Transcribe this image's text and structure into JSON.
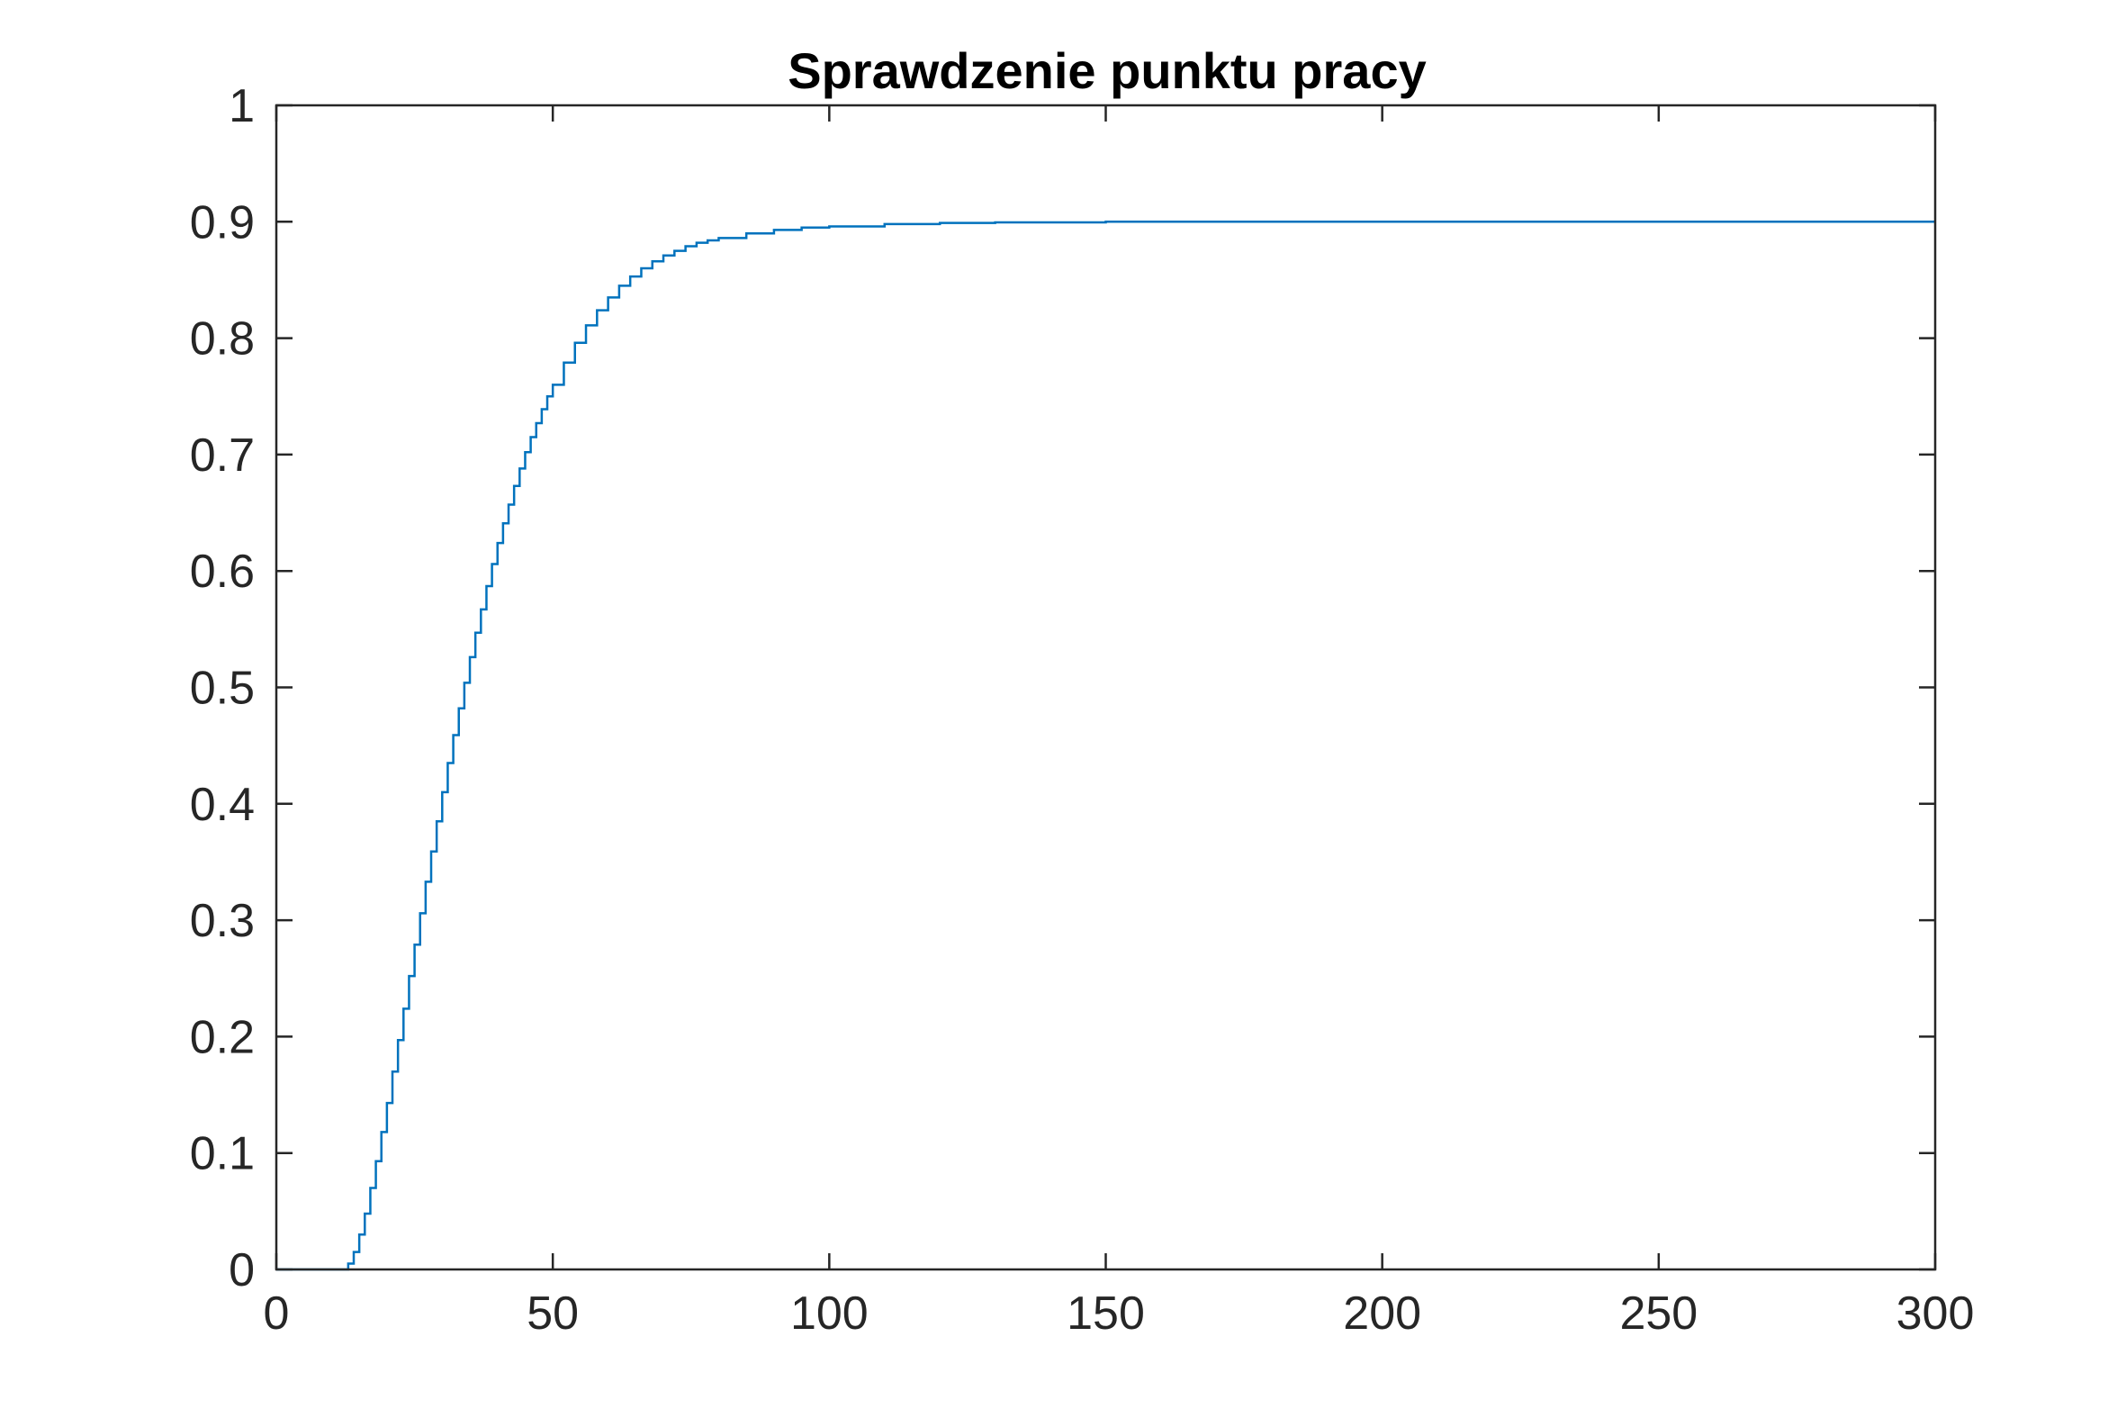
{
  "chart_data": {
    "type": "line",
    "line_style": "stairs",
    "title": "Sprawdzenie punktu pracy",
    "xlabel": "",
    "ylabel": "",
    "xlim": [
      0,
      300
    ],
    "ylim": [
      0,
      1
    ],
    "x_ticks": [
      0,
      50,
      100,
      150,
      200,
      250,
      300
    ],
    "y_ticks": [
      0,
      0.1,
      0.2,
      0.3,
      0.4,
      0.5,
      0.6,
      0.7,
      0.8,
      0.9,
      1
    ],
    "x_tick_labels": [
      "0",
      "50",
      "100",
      "150",
      "200",
      "250",
      "300"
    ],
    "y_tick_labels": [
      "0",
      "0.1",
      "0.2",
      "0.3",
      "0.4",
      "0.5",
      "0.6",
      "0.7",
      "0.8",
      "0.9",
      "1"
    ],
    "grid": false,
    "box": true,
    "colors": {
      "line": "#0072BD",
      "axes": "#262626",
      "background": "#ffffff"
    },
    "series": [
      {
        "x": [
          0,
          12,
          13,
          14,
          15,
          16,
          17,
          18,
          19,
          20,
          21,
          22,
          23,
          24,
          25,
          26,
          27,
          28,
          29,
          30,
          31,
          32,
          33,
          34,
          35,
          36,
          37,
          38,
          39,
          40,
          41,
          42,
          43,
          44,
          45,
          46,
          47,
          48,
          49,
          50,
          52,
          54,
          56,
          58,
          60,
          62,
          64,
          66,
          68,
          70,
          72,
          74,
          76,
          78,
          80,
          85,
          90,
          95,
          100,
          110,
          120,
          130,
          150,
          200,
          250,
          300
        ],
        "y": [
          0,
          0,
          0.005,
          0.015,
          0.03,
          0.048,
          0.07,
          0.093,
          0.118,
          0.143,
          0.17,
          0.197,
          0.224,
          0.252,
          0.279,
          0.306,
          0.333,
          0.359,
          0.385,
          0.41,
          0.435,
          0.459,
          0.482,
          0.504,
          0.526,
          0.547,
          0.567,
          0.587,
          0.606,
          0.624,
          0.641,
          0.657,
          0.673,
          0.688,
          0.702,
          0.715,
          0.727,
          0.739,
          0.75,
          0.76,
          0.779,
          0.796,
          0.811,
          0.824,
          0.835,
          0.845,
          0.853,
          0.86,
          0.866,
          0.871,
          0.875,
          0.879,
          0.882,
          0.884,
          0.886,
          0.89,
          0.893,
          0.895,
          0.896,
          0.898,
          0.899,
          0.8995,
          0.9,
          0.9,
          0.9,
          0.9
        ]
      }
    ]
  }
}
